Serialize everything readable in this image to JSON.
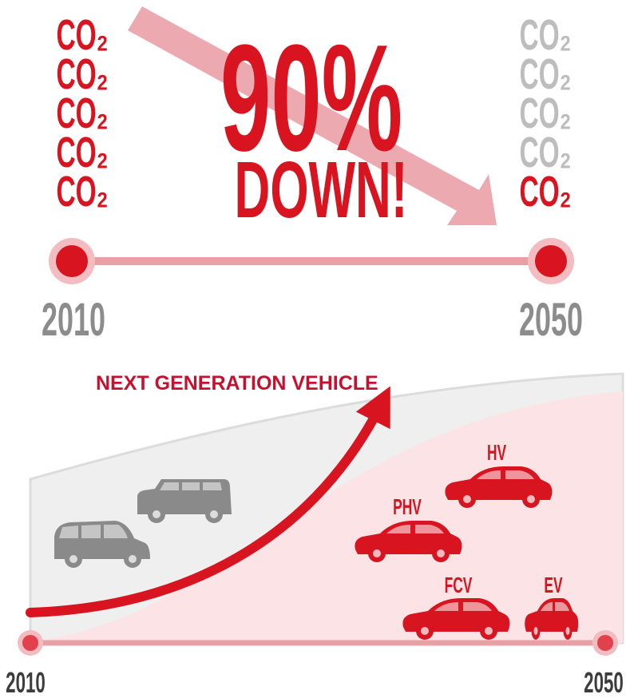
{
  "top": {
    "left_co2": [
      "CO₂",
      "CO₂",
      "CO₂",
      "CO₂",
      "CO₂"
    ],
    "right_co2": [
      "CO₂",
      "CO₂",
      "CO₂",
      "CO₂",
      "CO₂"
    ],
    "headline": [
      "90%",
      "DOWN!"
    ],
    "start_year": "2010",
    "end_year": "2050"
  },
  "bottom": {
    "title": "NEXT GENERATION VEHICLE",
    "vehicles": [
      "HV",
      "PHV",
      "FCV",
      "EV"
    ],
    "start_year": "2010",
    "end_year": "2050"
  }
}
